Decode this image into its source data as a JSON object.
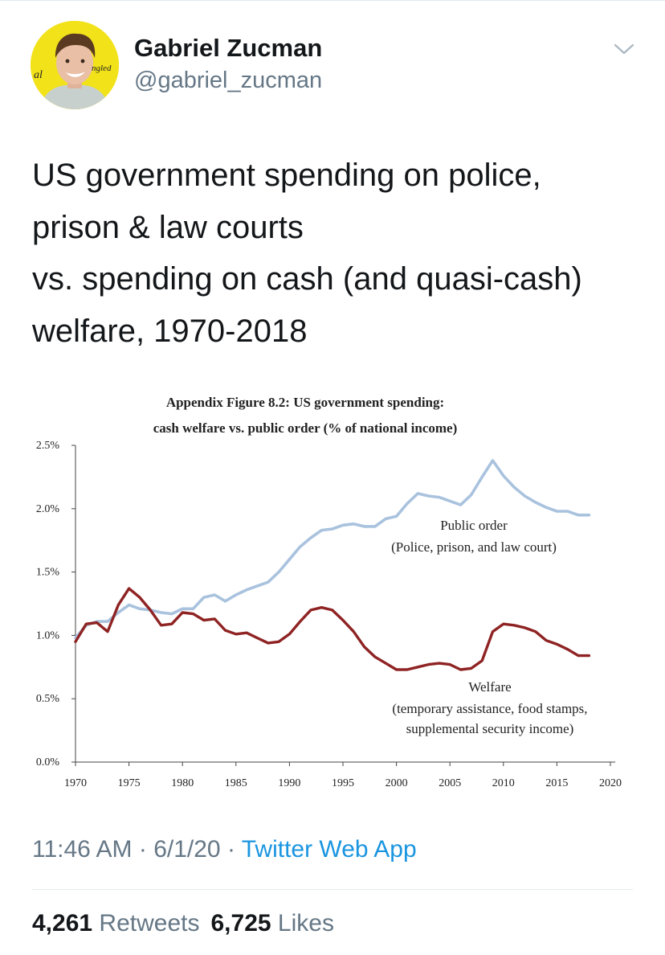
{
  "author": {
    "display_name": "Gabriel Zucman",
    "handle": "@gabriel_zucman",
    "avatar_text_left": "al",
    "avatar_text_right": "ngled"
  },
  "tweet": {
    "text_lines": [
      "US government spending on police,",
      "prison & law courts",
      "vs. spending on cash (and quasi-cash)",
      "welfare, 1970-2018"
    ]
  },
  "meta": {
    "time": "11:46 AM",
    "sep1": " · ",
    "date": "6/1/20",
    "sep2": " · ",
    "app": "Twitter Web App"
  },
  "stats": {
    "retweets_count": "4,261",
    "retweets_label": "Retweets",
    "likes_count": "6,725",
    "likes_label": "Likes"
  },
  "icons": {
    "caret": "chevron-down-icon"
  },
  "chart_data": {
    "type": "line",
    "title": "Appendix Figure 8.2: US government spending:",
    "subtitle": "cash welfare vs. public order (% of national income)",
    "xlabel": "",
    "ylabel": "",
    "xlim": [
      1970,
      2020
    ],
    "ylim": [
      0,
      2.5
    ],
    "x_ticks": [
      "1970",
      "1975",
      "1980",
      "1985",
      "1990",
      "1995",
      "2000",
      "2005",
      "2010",
      "2015",
      "2020"
    ],
    "y_ticks": [
      "0.0%",
      "0.5%",
      "1.0%",
      "1.5%",
      "2.0%",
      "2.5%"
    ],
    "grid": false,
    "series": [
      {
        "name": "Public order",
        "label_lines": [
          "Public order",
          "(Police, prison, and law court)"
        ],
        "color": "#a9c2de",
        "x": [
          1970,
          1971,
          1972,
          1973,
          1974,
          1975,
          1976,
          1977,
          1978,
          1979,
          1980,
          1981,
          1982,
          1983,
          1984,
          1985,
          1986,
          1987,
          1988,
          1989,
          1990,
          1991,
          1992,
          1993,
          1994,
          1995,
          1996,
          1997,
          1998,
          1999,
          2000,
          2001,
          2002,
          2003,
          2004,
          2005,
          2006,
          2007,
          2008,
          2009,
          2010,
          2011,
          2012,
          2013,
          2014,
          2015,
          2016,
          2017,
          2018
        ],
        "values": [
          0.98,
          1.08,
          1.11,
          1.11,
          1.18,
          1.24,
          1.21,
          1.2,
          1.18,
          1.17,
          1.21,
          1.21,
          1.3,
          1.32,
          1.27,
          1.32,
          1.36,
          1.39,
          1.42,
          1.5,
          1.6,
          1.7,
          1.77,
          1.83,
          1.84,
          1.87,
          1.88,
          1.86,
          1.86,
          1.92,
          1.94,
          2.04,
          2.12,
          2.1,
          2.09,
          2.06,
          2.03,
          2.11,
          2.25,
          2.38,
          2.26,
          2.17,
          2.1,
          2.05,
          2.01,
          1.98,
          1.98,
          1.95,
          1.95
        ]
      },
      {
        "name": "Welfare",
        "label_lines": [
          "Welfare",
          "(temporary assistance, food stamps,",
          "supplemental security income)"
        ],
        "color": "#8f2323",
        "x": [
          1970,
          1971,
          1972,
          1973,
          1974,
          1975,
          1976,
          1977,
          1978,
          1979,
          1980,
          1981,
          1982,
          1983,
          1984,
          1985,
          1986,
          1987,
          1988,
          1989,
          1990,
          1991,
          1992,
          1993,
          1994,
          1995,
          1996,
          1997,
          1998,
          1999,
          2000,
          2001,
          2002,
          2003,
          2004,
          2005,
          2006,
          2007,
          2008,
          2009,
          2010,
          2011,
          2012,
          2013,
          2014,
          2015,
          2016,
          2017,
          2018
        ],
        "values": [
          0.95,
          1.09,
          1.1,
          1.03,
          1.24,
          1.37,
          1.3,
          1.2,
          1.08,
          1.09,
          1.18,
          1.17,
          1.12,
          1.13,
          1.04,
          1.01,
          1.02,
          0.98,
          0.94,
          0.95,
          1.01,
          1.11,
          1.2,
          1.22,
          1.2,
          1.12,
          1.03,
          0.91,
          0.83,
          0.78,
          0.73,
          0.73,
          0.75,
          0.77,
          0.78,
          0.77,
          0.73,
          0.74,
          0.8,
          1.03,
          1.09,
          1.08,
          1.06,
          1.03,
          0.96,
          0.93,
          0.89,
          0.84,
          0.84
        ]
      }
    ]
  }
}
